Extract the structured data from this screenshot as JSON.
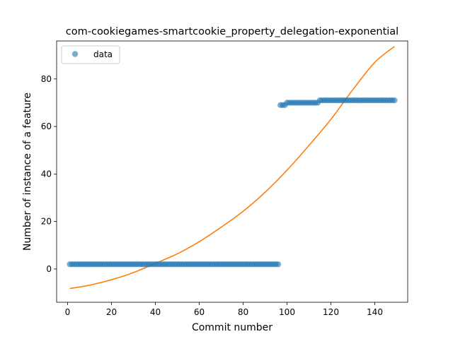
{
  "chart_data": {
    "type": "scatter",
    "title": "com-cookiegames-smartcookie_property_delegation-exponential",
    "xlabel": "Commit number",
    "ylabel": "Number of instance of a feature",
    "xlim": [
      -5,
      155
    ],
    "ylim": [
      -14,
      96
    ],
    "xticks": [
      0,
      20,
      40,
      60,
      80,
      100,
      120,
      140
    ],
    "yticks": [
      0,
      20,
      40,
      60,
      80
    ],
    "grid": false,
    "legend": {
      "position": "top-left",
      "entries": [
        "data"
      ]
    },
    "colors": {
      "data": "#1f77b4",
      "fit": "#ff7f0e"
    },
    "series": [
      {
        "name": "data",
        "kind": "scatter",
        "segments": [
          {
            "x_start": 1,
            "x_end": 96,
            "y": 2
          },
          {
            "x_start": 97,
            "x_end": 99,
            "y": 69
          },
          {
            "x_start": 100,
            "x_end": 114,
            "y": 70
          },
          {
            "x_start": 115,
            "x_end": 149,
            "y": 71
          }
        ]
      },
      {
        "kind": "line",
        "x": [
          1,
          10,
          20,
          30,
          40,
          50,
          60,
          70,
          80,
          90,
          100,
          110,
          120,
          130,
          140,
          149
        ],
        "y": [
          -8.2,
          -6.8,
          -4.5,
          -1.5,
          2.4,
          6.4,
          11.5,
          17.6,
          24.3,
          32.3,
          41.6,
          52.0,
          63.0,
          75.5,
          87.0,
          93.7
        ]
      }
    ]
  }
}
